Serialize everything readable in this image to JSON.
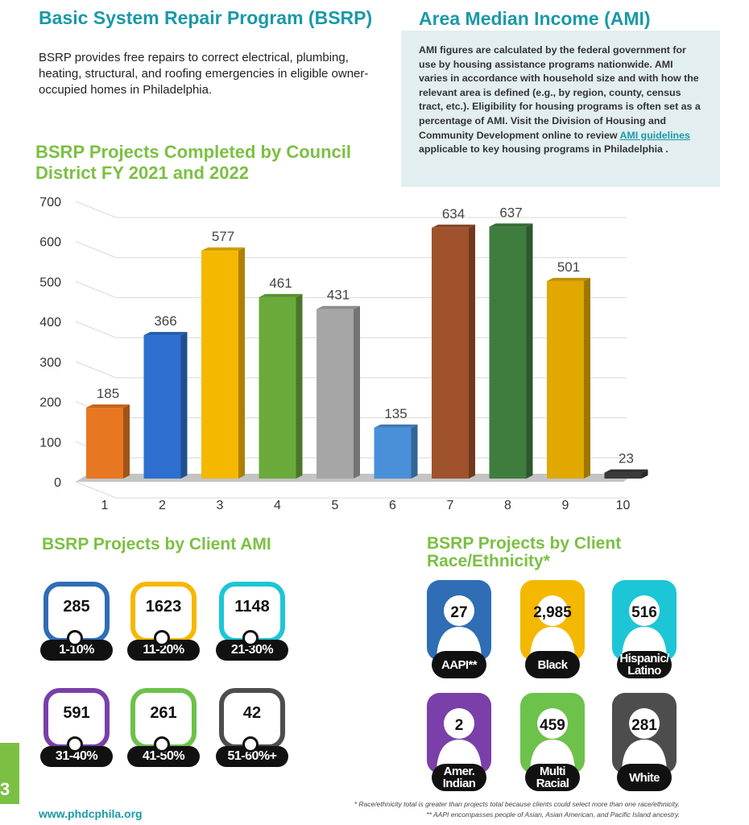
{
  "bsrp": {
    "title": "Basic System Repair Program (BSRP)",
    "description": "BSRP provides free repairs to correct electrical, plumbing, heating, structural, and roofing emergencies in eligible owner-occupied homes in Philadelphia."
  },
  "ami": {
    "title": "Area Median Income (AMI)",
    "text_before_link": "AMI figures are calculated by the federal government for use by housing assistance programs nationwide. AMI varies in accordance with household size and with how the relevant area is defined (e.g., by region, county, census tract, etc.). Eligibility for housing programs is often set as a percentage of AMI. Visit the Division of Housing and Community Development online to review ",
    "link_text": "AMI guidelines",
    "text_after_link": " applicable to key housing programs in Philadelphia ."
  },
  "chart_data": {
    "type": "bar",
    "title": "BSRP Projects Completed by Council District FY 2021 and 2022",
    "categories": [
      "1",
      "2",
      "3",
      "4",
      "5",
      "6",
      "7",
      "8",
      "9",
      "10"
    ],
    "values": [
      185,
      366,
      577,
      461,
      431,
      135,
      634,
      637,
      501,
      23
    ],
    "colors": [
      "#e87722",
      "#2e6fcf",
      "#f5b800",
      "#6aaa3a",
      "#a6a6a6",
      "#4a90d9",
      "#a0522d",
      "#3f7d3f",
      "#e0a800",
      "#3a3a3a"
    ],
    "ylim": [
      0,
      700
    ],
    "yticks": [
      0,
      100,
      200,
      300,
      400,
      500,
      600,
      700
    ],
    "grid": true
  },
  "ami_section": {
    "title": "BSRP Projects by Client AMI",
    "cards": [
      {
        "value": "285",
        "label": "1-10%",
        "color": "#2f6db5"
      },
      {
        "value": "1623",
        "label": "11-20%",
        "color": "#f5b800"
      },
      {
        "value": "1148",
        "label": "21-30%",
        "color": "#1cc6d6"
      },
      {
        "value": "591",
        "label": "31-40%",
        "color": "#7a3fa8"
      },
      {
        "value": "261",
        "label": "41-50%",
        "color": "#6cc24a"
      },
      {
        "value": "42",
        "label": "51-60%+",
        "color": "#4d4d4d"
      }
    ]
  },
  "race_section": {
    "title": "BSRP Projects by Client Race/Ethnicity*",
    "cards": [
      {
        "value": "27",
        "label": "AAPI**",
        "color": "#2f6db5"
      },
      {
        "value": "2,985",
        "label": "Black",
        "color": "#f5b800"
      },
      {
        "value": "516",
        "label": "Hispanic/ Latino",
        "color": "#1cc6d6"
      },
      {
        "value": "2",
        "label": "Amer. Indian",
        "color": "#7a3fa8"
      },
      {
        "value": "459",
        "label": "Multi Racial",
        "color": "#6cc24a"
      },
      {
        "value": "281",
        "label": "White",
        "color": "#4d4d4d"
      }
    ]
  },
  "footer": {
    "page_number": "3",
    "url": "www.phdcphila.org",
    "footnote1": "* Race/ethnicity total is greater than projects total because clients could select more than one race/ethnicity.",
    "footnote2": "** AAPI encompasses people of Asian, Asian American, and Pacific Island ancestry."
  }
}
